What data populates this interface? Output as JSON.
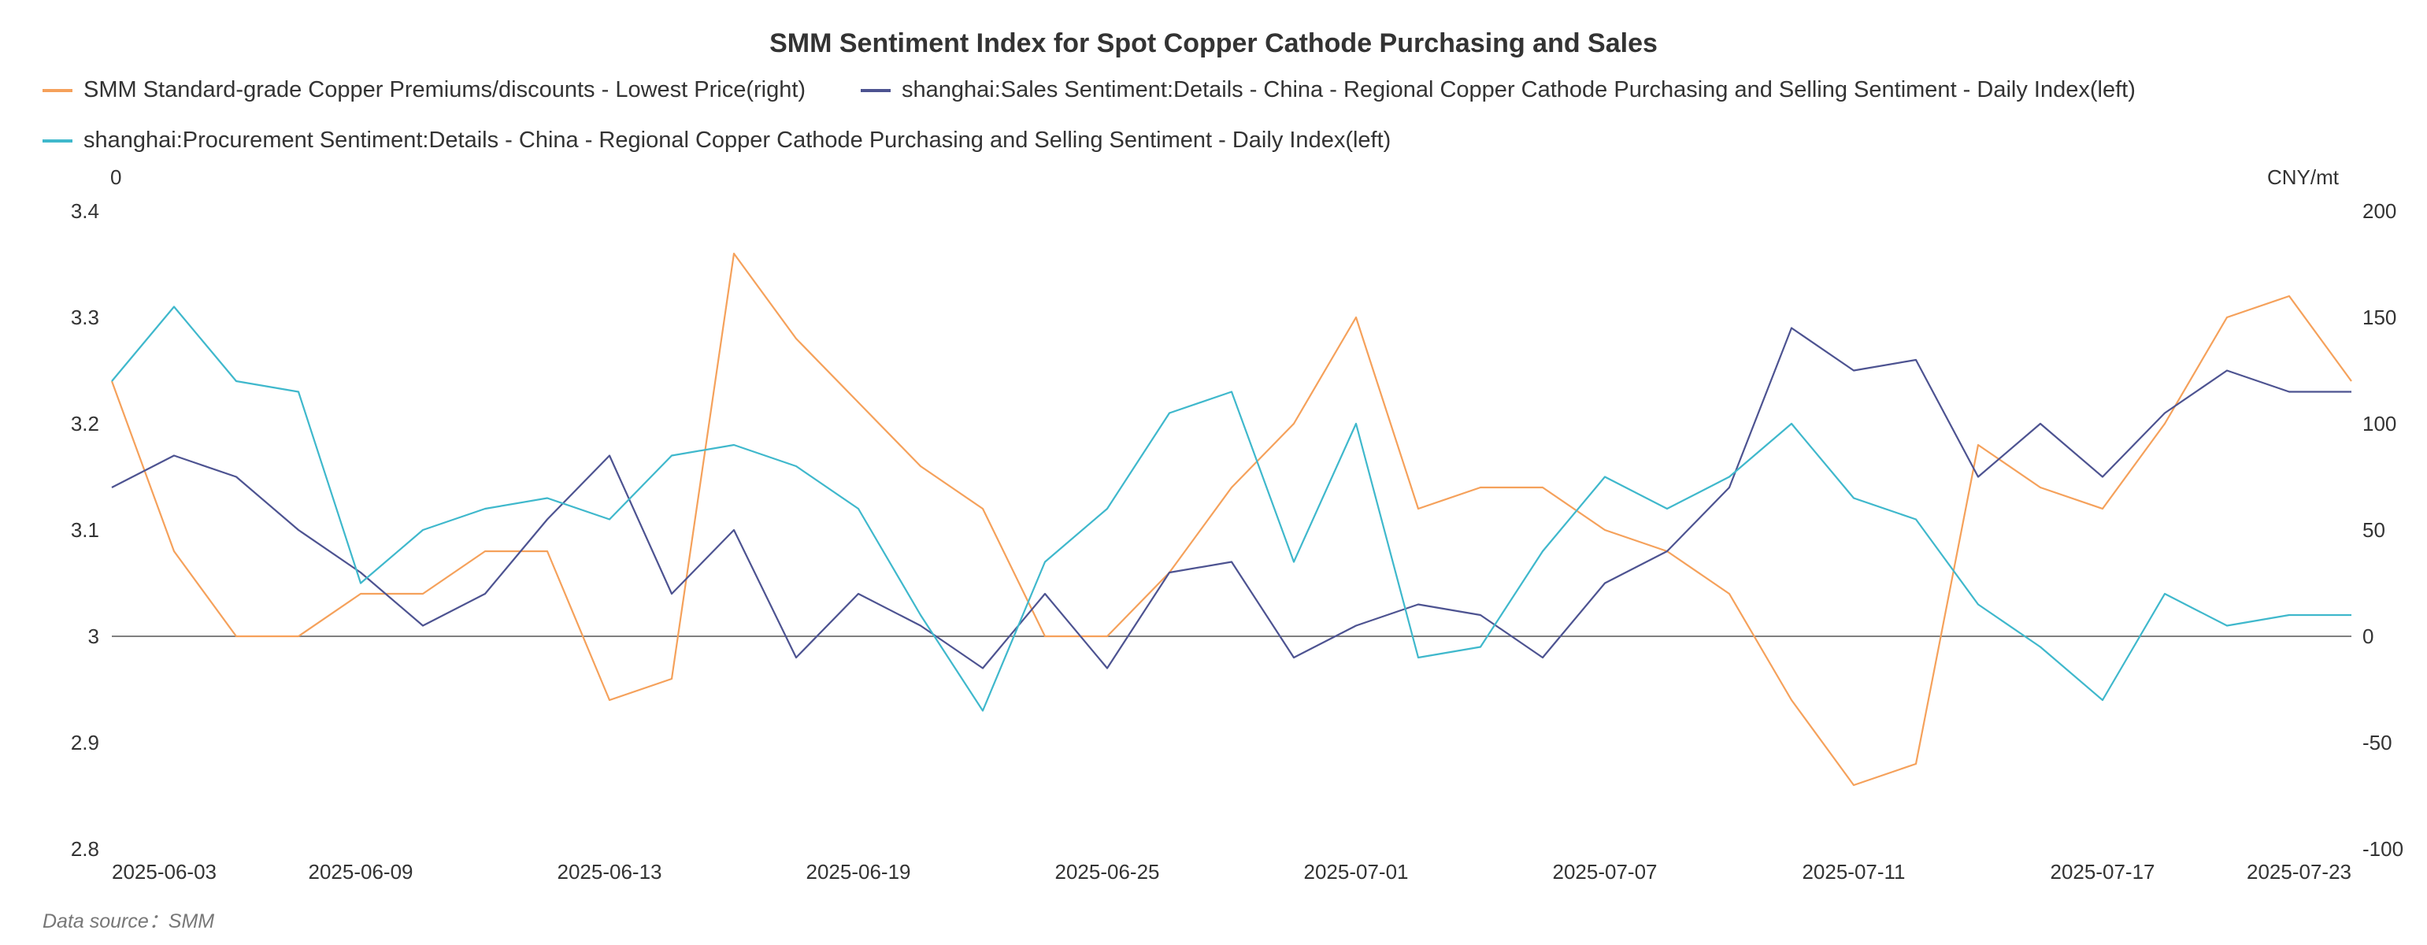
{
  "chart_data": {
    "type": "line",
    "title": "SMM Sentiment Index for Spot Copper Cathode Purchasing and Sales",
    "left_axis": {
      "label": "0",
      "min": 2.8,
      "max": 3.4,
      "ticks": [
        "3.4",
        "3.3",
        "3.2",
        "3.1",
        "3",
        "2.9",
        "2.8"
      ]
    },
    "right_axis": {
      "label": "CNY/mt",
      "min": -100,
      "max": 200,
      "ticks": [
        "200",
        "150",
        "100",
        "50",
        "0",
        "-50",
        "-100"
      ]
    },
    "x_tick_labels": [
      "2025-06-03",
      "2025-06-09",
      "2025-06-13",
      "2025-06-19",
      "2025-06-25",
      "2025-07-01",
      "2025-07-07",
      "2025-07-11",
      "2025-07-17",
      "2025-07-23"
    ],
    "x": [
      "2025-06-03",
      "2025-06-04",
      "2025-06-05",
      "2025-06-06",
      "2025-06-09",
      "2025-06-10",
      "2025-06-11",
      "2025-06-12",
      "2025-06-13",
      "2025-06-16",
      "2025-06-17",
      "2025-06-18",
      "2025-06-19",
      "2025-06-20",
      "2025-06-23",
      "2025-06-24",
      "2025-06-25",
      "2025-06-26",
      "2025-06-27",
      "2025-06-30",
      "2025-07-01",
      "2025-07-02",
      "2025-07-03",
      "2025-07-04",
      "2025-07-07",
      "2025-07-08",
      "2025-07-09",
      "2025-07-10",
      "2025-07-11",
      "2025-07-14",
      "2025-07-15",
      "2025-07-16",
      "2025-07-17",
      "2025-07-18",
      "2025-07-21",
      "2025-07-22",
      "2025-07-23"
    ],
    "zero_line": true,
    "grid": false,
    "legend_position": "top-left",
    "series": [
      {
        "name": "SMM Standard-grade Copper Premiums/discounts - Lowest Price(right)",
        "axis": "right",
        "color": "#f5a15b",
        "values": [
          120,
          40,
          0,
          0,
          20,
          20,
          40,
          40,
          -30,
          -20,
          180,
          140,
          110,
          80,
          60,
          0,
          0,
          30,
          70,
          100,
          150,
          60,
          70,
          70,
          50,
          40,
          20,
          -30,
          -70,
          -60,
          90,
          70,
          60,
          100,
          150,
          160,
          120
        ]
      },
      {
        "name": "shanghai:Sales Sentiment:Details - China - Regional Copper Cathode Purchasing and Selling Sentiment - Daily Index(left)",
        "axis": "left",
        "color": "#4d5391",
        "values": [
          3.14,
          3.17,
          3.15,
          3.1,
          3.06,
          3.01,
          3.04,
          3.11,
          3.17,
          3.04,
          3.1,
          2.98,
          3.04,
          3.01,
          2.97,
          3.04,
          2.97,
          3.06,
          3.07,
          2.98,
          3.01,
          3.03,
          3.02,
          2.98,
          3.05,
          3.08,
          3.14,
          3.29,
          3.25,
          3.26,
          3.15,
          3.2,
          3.15,
          3.21,
          3.25,
          3.23,
          3.23
        ]
      },
      {
        "name": "shanghai:Procurement Sentiment:Details - China - Regional Copper Cathode Purchasing and Selling Sentiment - Daily Index(left)",
        "axis": "left",
        "color": "#3fb8cc",
        "values": [
          3.24,
          3.31,
          3.24,
          3.23,
          3.05,
          3.1,
          3.12,
          3.13,
          3.11,
          3.17,
          3.18,
          3.16,
          3.12,
          3.02,
          2.93,
          3.07,
          3.12,
          3.21,
          3.23,
          3.07,
          3.2,
          2.98,
          2.99,
          3.08,
          3.15,
          3.12,
          3.15,
          3.2,
          3.13,
          3.11,
          3.03,
          2.99,
          2.94,
          3.04,
          3.01,
          3.02,
          3.02
        ]
      }
    ]
  },
  "footer": {
    "source": "Data source：SMM"
  }
}
